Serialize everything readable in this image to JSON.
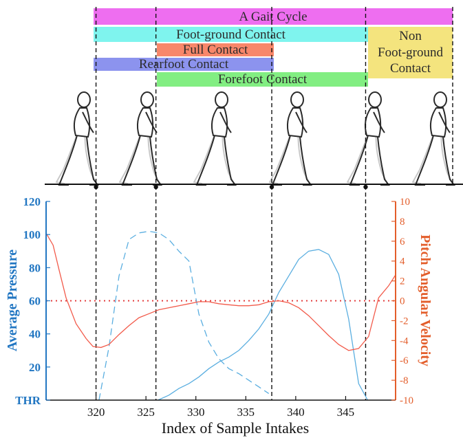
{
  "phases": {
    "gait_cycle": "A Gait Cycle",
    "foot_ground": "Foot-ground Contact",
    "non_contact_1": "Non",
    "non_contact_2": "Foot-ground",
    "non_contact_3": "Contact",
    "full_contact": "Full Contact",
    "rearfoot": "Rearfoot Contact",
    "forefoot": "Forefoot Contact",
    "colors": {
      "gait_cycle": "#ee6ef0",
      "foot_ground": "#7ff4ee",
      "non_contact": "#f4e47e",
      "full_contact": "#f8876a",
      "rearfoot": "#8c93ee",
      "forefoot": "#82ee82"
    }
  },
  "chart_data": {
    "type": "line",
    "xlabel": "Index of Sample Intakes",
    "ylabel_left": "Average Pressure",
    "ylabel_right": "Pitch Angular Velocity",
    "xlim": [
      315,
      350
    ],
    "ylim_left": [
      0,
      120
    ],
    "ylim_right": [
      -10,
      10
    ],
    "x_ticks": [
      "320",
      "325",
      "330",
      "335",
      "340",
      "345"
    ],
    "y_left_ticks": [
      "THR",
      "20",
      "40",
      "60",
      "80",
      "100",
      "120"
    ],
    "y_right_ticks": [
      "-10",
      "-8",
      "-6",
      "-4",
      "-2",
      "0",
      "2",
      "4",
      "6",
      "8",
      "10"
    ],
    "event_lines_x": [
      320,
      326,
      337.6,
      347
    ],
    "threshold_right_value": 0,
    "series": [
      {
        "axis": "left",
        "style": "dashed",
        "x": [
          320.3,
          321.3,
          322.3,
          323.3,
          324.3,
          325.3,
          326.3,
          327.3,
          328.3,
          329.3,
          330.3,
          331.3,
          332.3,
          333.3,
          334.3,
          335.3,
          336.3,
          337.3
        ],
        "y": [
          0,
          32,
          75,
          97,
          101,
          102,
          101,
          97,
          90,
          84,
          52,
          35,
          25,
          19,
          16,
          12,
          8,
          4
        ]
      },
      {
        "axis": "left",
        "style": "solid",
        "x": [
          326.2,
          327.3,
          328.3,
          329.3,
          330.3,
          331.3,
          332.3,
          333.3,
          334.3,
          335.3,
          336.3,
          337.3,
          338.3,
          339.3,
          340.3,
          341.3,
          342.3,
          343.3,
          344.3,
          345.3,
          346.3,
          347.2
        ],
        "y": [
          0,
          3,
          7,
          10,
          14,
          19,
          23,
          26,
          30,
          36,
          43,
          52,
          65,
          75,
          85,
          90,
          91,
          88,
          76,
          49,
          10,
          0
        ]
      },
      {
        "axis": "right",
        "style": "solid",
        "x": [
          315,
          315.7,
          316.3,
          317,
          318,
          319,
          319.7,
          320.5,
          321.3,
          322.3,
          323.3,
          324.3,
          325.3,
          326.3,
          327.3,
          328.3,
          329.3,
          330.3,
          331.3,
          332.3,
          333.3,
          334.3,
          335.3,
          336.3,
          337.3,
          338.3,
          339.3,
          340.3,
          341.3,
          342.3,
          343.3,
          344.3,
          345.3,
          346.3,
          347.3,
          348.3,
          349.3,
          350
        ],
        "y": [
          6.8,
          5.6,
          3.1,
          0.3,
          -2.3,
          -3.8,
          -4.6,
          -4.7,
          -4.4,
          -3.4,
          -2.5,
          -1.7,
          -1.3,
          -0.9,
          -0.7,
          -0.5,
          -0.3,
          -0.1,
          -0.1,
          -0.3,
          -0.4,
          -0.5,
          -0.5,
          -0.4,
          -0.1,
          0,
          -0.2,
          -0.7,
          -1.5,
          -2.5,
          -3.5,
          -4.4,
          -5.0,
          -4.8,
          -3.6,
          0.3,
          1.5,
          2.6
        ]
      }
    ],
    "colors": {
      "pressure": "#5aaee0",
      "angular": "#f25a4a",
      "left_axis": "#2176c2",
      "right_axis": "#e35d2a",
      "threshold": "#e33a3a"
    }
  }
}
